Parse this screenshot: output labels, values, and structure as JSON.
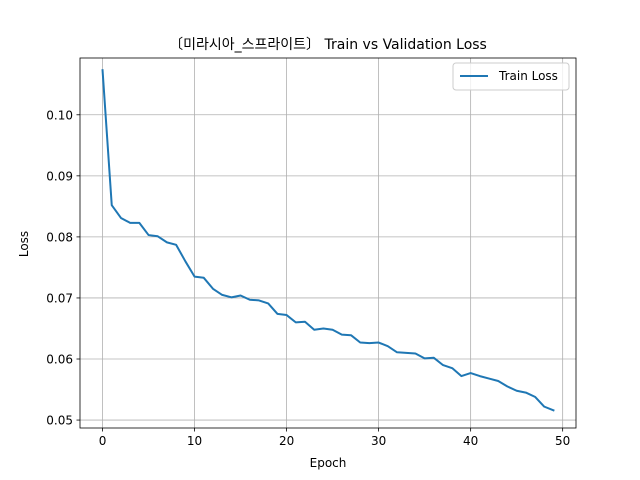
{
  "chart_data": {
    "type": "line",
    "title": "〔미라시아_스프라이트〕 Train vs Validation Loss",
    "xlabel": "Epoch",
    "ylabel": "Loss",
    "xlim": [
      -2.45,
      51.45
    ],
    "ylim": [
      0.0487,
      0.1093
    ],
    "xticks": [
      0,
      10,
      20,
      30,
      40,
      50
    ],
    "yticks": [
      0.05,
      0.06,
      0.07,
      0.08,
      0.09,
      0.1
    ],
    "xtick_labels": [
      "0",
      "10",
      "20",
      "30",
      "40",
      "50"
    ],
    "ytick_labels": [
      "0.05",
      "0.06",
      "0.07",
      "0.08",
      "0.09",
      "0.10"
    ],
    "grid": true,
    "legend_position": "upper right",
    "series": [
      {
        "name": "Train Loss",
        "color": "#1f77b4",
        "x": [
          0,
          1,
          2,
          3,
          4,
          5,
          6,
          7,
          8,
          9,
          10,
          11,
          12,
          13,
          14,
          15,
          16,
          17,
          18,
          19,
          20,
          21,
          22,
          23,
          24,
          25,
          26,
          27,
          28,
          29,
          30,
          31,
          32,
          33,
          34,
          35,
          36,
          37,
          38,
          39,
          40,
          41,
          42,
          43,
          44,
          45,
          46,
          47,
          48,
          49
        ],
        "values": [
          0.1073,
          0.0852,
          0.0831,
          0.0823,
          0.0823,
          0.0803,
          0.0801,
          0.0791,
          0.0787,
          0.076,
          0.0735,
          0.0733,
          0.0715,
          0.0705,
          0.0701,
          0.0704,
          0.0697,
          0.0696,
          0.0691,
          0.0674,
          0.0672,
          0.066,
          0.0661,
          0.0648,
          0.065,
          0.0648,
          0.064,
          0.0639,
          0.0627,
          0.0626,
          0.0627,
          0.0621,
          0.0611,
          0.061,
          0.0609,
          0.0601,
          0.0602,
          0.059,
          0.0585,
          0.0572,
          0.0577,
          0.0572,
          0.0568,
          0.0564,
          0.0555,
          0.0548,
          0.0545,
          0.0538,
          0.0522,
          0.0516
        ]
      }
    ]
  }
}
